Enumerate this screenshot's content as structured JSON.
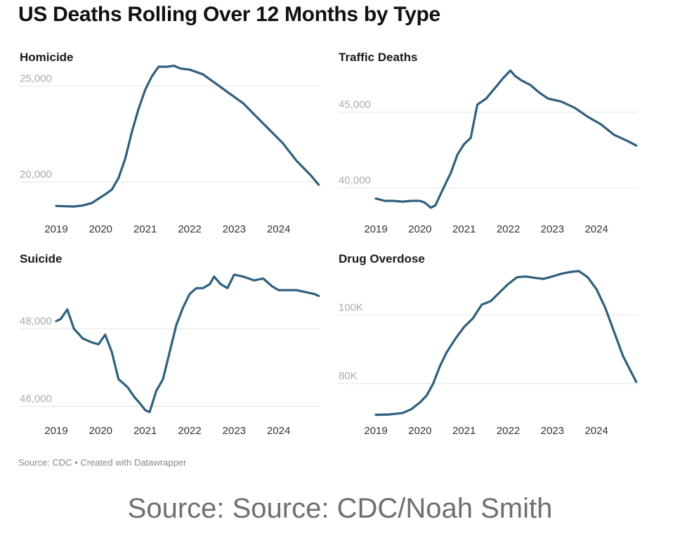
{
  "title": "US Deaths Rolling Over 12 Months by Type",
  "footer": "Source: CDC • Created with Datawrapper",
  "credit": "Source: Source: CDC/Noah Smith",
  "colors": {
    "line": "#2f5f7d",
    "grid": "#e4e4e4"
  },
  "chart_data": [
    {
      "type": "line",
      "title": "Homicide",
      "x_ticks": [
        "2019",
        "2020",
        "2021",
        "2022",
        "2023",
        "2024"
      ],
      "y_ticks": [
        {
          "value": 20000,
          "label": "20,000"
        },
        {
          "value": 25000,
          "label": "25,000"
        }
      ],
      "xlim": [
        2019,
        2025
      ],
      "ylim": [
        18500,
        26000
      ],
      "series": [
        {
          "x": [
            2019.0,
            2019.2,
            2019.4,
            2019.6,
            2019.8,
            2020.0,
            2020.1,
            2020.25,
            2020.4,
            2020.55,
            2020.7,
            2020.85,
            2021.0,
            2021.15,
            2021.3,
            2021.5,
            2021.65,
            2021.8,
            2022.0,
            2022.3,
            2022.6,
            2022.9,
            2023.2,
            2023.5,
            2023.8,
            2024.1,
            2024.4,
            2024.7,
            2024.9
          ],
          "values": [
            18750,
            18730,
            18720,
            18770,
            18900,
            19200,
            19350,
            19600,
            20200,
            21200,
            22600,
            23800,
            24800,
            25500,
            26000,
            26000,
            26050,
            25900,
            25850,
            25600,
            25100,
            24600,
            24100,
            23400,
            22700,
            22000,
            21100,
            20400,
            19850
          ]
        }
      ]
    },
    {
      "type": "line",
      "title": "Traffic Deaths",
      "x_ticks": [
        "2019",
        "2020",
        "2021",
        "2022",
        "2023",
        "2024"
      ],
      "y_ticks": [
        {
          "value": 40000,
          "label": "40,000"
        },
        {
          "value": 45000,
          "label": "45,000"
        }
      ],
      "xlim": [
        2019,
        2025
      ],
      "ylim": [
        38500,
        48000
      ],
      "series": [
        {
          "x": [
            2019.0,
            2019.2,
            2019.4,
            2019.6,
            2019.8,
            2020.0,
            2020.1,
            2020.25,
            2020.35,
            2020.5,
            2020.7,
            2020.85,
            2021.0,
            2021.15,
            2021.3,
            2021.5,
            2021.7,
            2021.9,
            2022.05,
            2022.15,
            2022.3,
            2022.5,
            2022.7,
            2022.9,
            2023.2,
            2023.5,
            2023.8,
            2024.1,
            2024.4,
            2024.7,
            2024.9
          ],
          "values": [
            39300,
            39150,
            39150,
            39100,
            39150,
            39150,
            39050,
            38700,
            38850,
            39800,
            41000,
            42200,
            42900,
            43300,
            45500,
            45900,
            46600,
            47300,
            47750,
            47400,
            47100,
            46800,
            46300,
            45900,
            45700,
            45300,
            44700,
            44200,
            43500,
            43100,
            42800
          ]
        }
      ]
    },
    {
      "type": "line",
      "title": "Suicide",
      "x_ticks": [
        "2019",
        "2020",
        "2021",
        "2022",
        "2023",
        "2024"
      ],
      "y_ticks": [
        {
          "value": 46000,
          "label": "46,000"
        },
        {
          "value": 48000,
          "label": "48,000"
        }
      ],
      "xlim": [
        2019,
        2025
      ],
      "ylim": [
        45700,
        49600
      ],
      "series": [
        {
          "x": [
            2019.0,
            2019.1,
            2019.25,
            2019.4,
            2019.6,
            2019.8,
            2019.95,
            2020.1,
            2020.25,
            2020.4,
            2020.6,
            2020.75,
            2020.9,
            2021.0,
            2021.1,
            2021.25,
            2021.4,
            2021.55,
            2021.7,
            2021.85,
            2022.0,
            2022.15,
            2022.3,
            2022.45,
            2022.55,
            2022.7,
            2022.85,
            2023.0,
            2023.2,
            2023.45,
            2023.65,
            2023.85,
            2024.0,
            2024.2,
            2024.4,
            2024.6,
            2024.8,
            2024.9
          ],
          "values": [
            48200,
            48250,
            48500,
            48000,
            47750,
            47650,
            47600,
            47850,
            47400,
            46700,
            46500,
            46250,
            46050,
            45900,
            45850,
            46400,
            46700,
            47400,
            48100,
            48550,
            48900,
            49050,
            49050,
            49150,
            49350,
            49150,
            49050,
            49400,
            49350,
            49250,
            49300,
            49100,
            49000,
            49000,
            49000,
            48950,
            48900,
            48850
          ]
        }
      ]
    },
    {
      "type": "line",
      "title": "Drug Overdose",
      "x_ticks": [
        "2019",
        "2020",
        "2021",
        "2022",
        "2023",
        "2024"
      ],
      "y_ticks": [
        {
          "value": 80000,
          "label": "80K"
        },
        {
          "value": 100000,
          "label": "100K"
        }
      ],
      "xlim": [
        2019,
        2025
      ],
      "ylim": [
        70000,
        114000
      ],
      "series": [
        {
          "x": [
            2019.0,
            2019.3,
            2019.6,
            2019.8,
            2020.0,
            2020.15,
            2020.3,
            2020.45,
            2020.6,
            2020.8,
            2021.0,
            2021.2,
            2021.4,
            2021.6,
            2021.8,
            2022.0,
            2022.2,
            2022.4,
            2022.6,
            2022.8,
            2023.0,
            2023.2,
            2023.4,
            2023.6,
            2023.8,
            2024.0,
            2024.2,
            2024.4,
            2024.6,
            2024.8,
            2024.9
          ],
          "values": [
            70900,
            71000,
            71400,
            72500,
            74500,
            76500,
            80000,
            85000,
            89000,
            93000,
            96500,
            99000,
            103000,
            104000,
            106500,
            109000,
            111000,
            111200,
            110800,
            110500,
            111200,
            112000,
            112500,
            112800,
            111000,
            107500,
            102000,
            95000,
            88000,
            83000,
            80500
          ]
        }
      ]
    }
  ]
}
